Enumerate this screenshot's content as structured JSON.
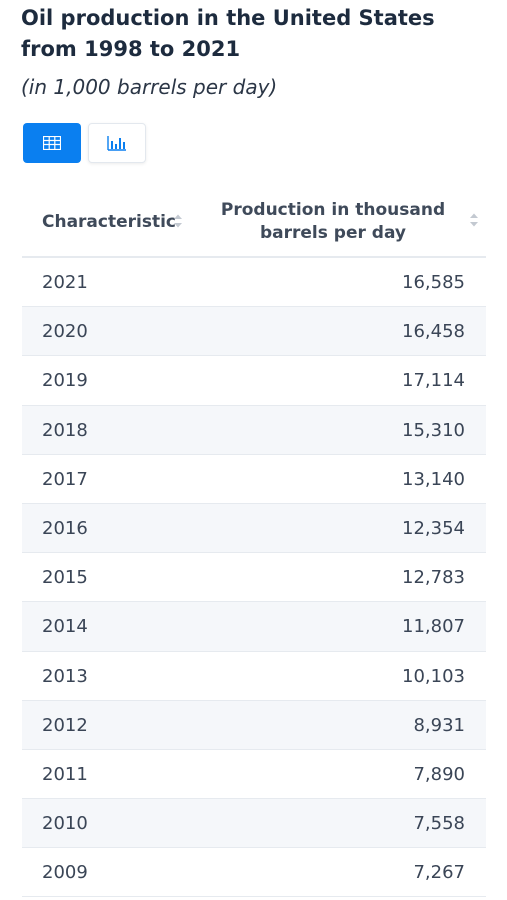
{
  "header": {
    "title": "Oil production in the United States from 1998 to 2021",
    "subtitle": "(in 1,000 barrels per day)"
  },
  "view_toggle": {
    "table_icon": "table-icon",
    "chart_icon": "bar-chart-icon",
    "active": "table",
    "accent_color": "#0a7ff0"
  },
  "table": {
    "columns": [
      "Characteristic",
      "Production in thousand barrels per day"
    ]
  },
  "chart_data": {
    "type": "table",
    "title": "Oil production in the United States from 1998 to 2021",
    "subtitle": "(in 1,000 barrels per day)",
    "columns": [
      "Characteristic",
      "Production in thousand barrels per day"
    ],
    "rows": [
      {
        "year": "2021",
        "value": "16,585"
      },
      {
        "year": "2020",
        "value": "16,458"
      },
      {
        "year": "2019",
        "value": "17,114"
      },
      {
        "year": "2018",
        "value": "15,310"
      },
      {
        "year": "2017",
        "value": "13,140"
      },
      {
        "year": "2016",
        "value": "12,354"
      },
      {
        "year": "2015",
        "value": "12,783"
      },
      {
        "year": "2014",
        "value": "11,807"
      },
      {
        "year": "2013",
        "value": "10,103"
      },
      {
        "year": "2012",
        "value": "8,931"
      },
      {
        "year": "2011",
        "value": "7,890"
      },
      {
        "year": "2010",
        "value": "7,558"
      },
      {
        "year": "2009",
        "value": "7,267"
      }
    ]
  }
}
